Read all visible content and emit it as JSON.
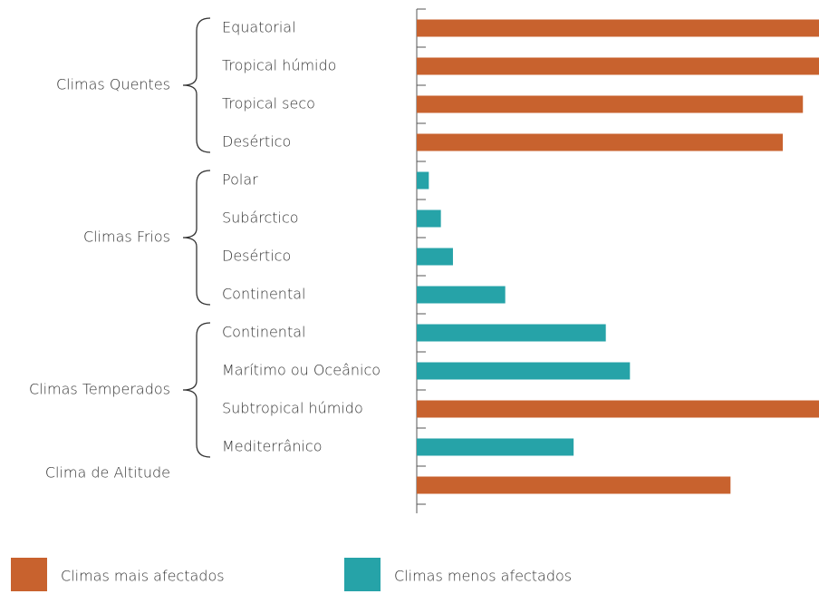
{
  "chart_data": {
    "type": "bar",
    "orientation": "horizontal",
    "groups": [
      {
        "name": "Climas Quentes",
        "categories": [
          "Equatorial",
          "Tropical húmido",
          "Tropical seco",
          "Desértico"
        ]
      },
      {
        "name": "Climas Frios",
        "categories": [
          "Polar",
          "Subárctico",
          "Desértico",
          "Continental"
        ]
      },
      {
        "name": "Climas Temperados",
        "categories": [
          "Continental",
          "Marítimo ou Oceânico",
          "Subtropical húmido",
          "Mediterrânico"
        ]
      },
      {
        "name": "Clima de Altitude",
        "categories": [
          null
        ]
      }
    ],
    "series": [
      {
        "name": "Climas mais afectados",
        "color": "#c8622e",
        "values": [
          100,
          100,
          96,
          91,
          null,
          null,
          null,
          null,
          null,
          null,
          100,
          null,
          78
        ]
      },
      {
        "name": "Climas menos afectados",
        "color": "#26a3a8",
        "values": [
          null,
          null,
          null,
          null,
          3,
          6,
          9,
          22,
          47,
          53,
          null,
          39,
          null
        ]
      }
    ],
    "xlim": [
      0,
      100
    ]
  }
}
